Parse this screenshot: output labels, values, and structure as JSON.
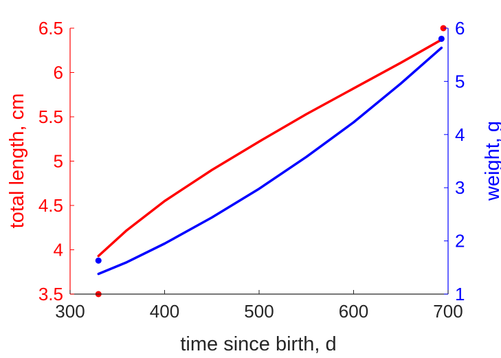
{
  "chart_data": {
    "type": "line",
    "title": "",
    "xlabel": "time since birth, d",
    "ylabel_left": "total length, cm",
    "ylabel_right": "weight, g",
    "xlim": [
      300,
      700
    ],
    "ylim_left": [
      3.5,
      6.5
    ],
    "ylim_right": [
      1,
      6
    ],
    "x_ticks": [
      "300",
      "400",
      "500",
      "600",
      "700"
    ],
    "y_left_ticks": [
      "3.5",
      "4",
      "4.5",
      "5",
      "5.5",
      "6",
      "6.5"
    ],
    "y_right_ticks": [
      "1",
      "2",
      "3",
      "4",
      "5",
      "6"
    ],
    "colors": {
      "left": "#ff0000",
      "right": "#0000ff",
      "axes": "#262626"
    },
    "series": [
      {
        "axis": "left",
        "x": [
          330,
          360,
          400,
          450,
          500,
          550,
          600,
          650,
          693
        ],
        "y": [
          3.93,
          4.22,
          4.55,
          4.9,
          5.22,
          5.53,
          5.82,
          6.11,
          6.37
        ]
      },
      {
        "axis": "right",
        "x": [
          330,
          360,
          400,
          450,
          500,
          550,
          600,
          650,
          693
        ],
        "y": [
          1.38,
          1.6,
          1.95,
          2.44,
          2.98,
          3.58,
          4.23,
          4.96,
          5.63
        ]
      }
    ],
    "points": [
      {
        "axis": "left",
        "x": 330,
        "y": 3.5
      },
      {
        "axis": "left",
        "x": 695,
        "y": 6.5
      },
      {
        "axis": "right",
        "x": 330,
        "y": 1.63
      },
      {
        "axis": "right",
        "x": 693,
        "y": 5.8
      }
    ]
  }
}
